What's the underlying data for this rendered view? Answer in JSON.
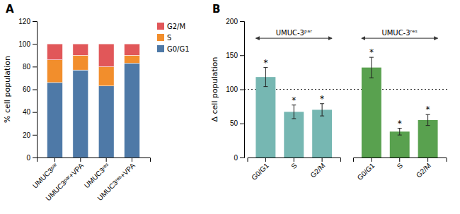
{
  "chart_data": [
    {
      "type": "bar",
      "title": "A",
      "categories": [
        "UMUC3ᵖᵃʳ",
        "UMUC3ᵖᵃʳ+VPA",
        "UMUC3ʳᵉˢ",
        "UMUC3ʳᵉˢ+VPA"
      ],
      "series": [
        {
          "name": "G0/G1",
          "values": [
            66,
            77,
            63,
            83
          ]
        },
        {
          "name": "S",
          "values": [
            20,
            13,
            17,
            7
          ]
        },
        {
          "name": "G2/M",
          "values": [
            14,
            10,
            20,
            10
          ]
        }
      ],
      "stacked": true,
      "ylabel": "% cell population",
      "ylim": [
        0,
        120
      ],
      "yticks": [
        0,
        20,
        40,
        60,
        80,
        100,
        120
      ],
      "legend": "upper right"
    },
    {
      "type": "bar",
      "title": "B",
      "series": [
        {
          "name": "UMUC-3ᵖᵃʳ",
          "categories": [
            "G0/G1",
            "S",
            "G2/M"
          ],
          "values": [
            118,
            67,
            70
          ],
          "errors": [
            14,
            10,
            9
          ],
          "annotations": [
            "*",
            "*",
            "*"
          ]
        },
        {
          "name": "UMUC-3ʳᵉˢ",
          "categories": [
            "G0/G1",
            "S",
            "G2/M"
          ],
          "values": [
            132,
            38,
            55
          ],
          "errors": [
            15,
            5,
            8
          ],
          "annotations": [
            "*",
            "*",
            "*"
          ]
        }
      ],
      "ylabel": "Δ cell population",
      "ylim": [
        0,
        200
      ],
      "yticks": [
        0,
        50,
        100,
        150,
        200
      ],
      "reference_line": 100
    }
  ]
}
